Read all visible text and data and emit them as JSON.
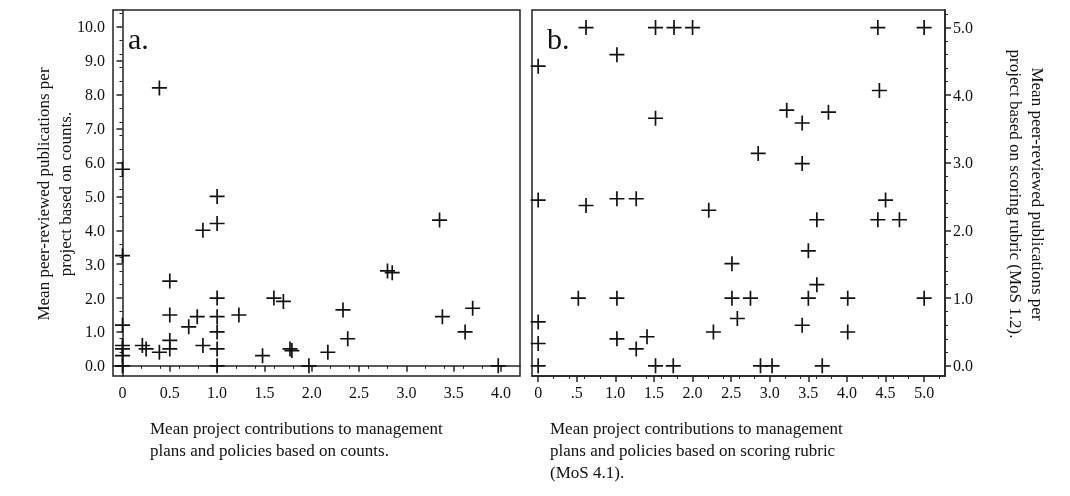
{
  "chart_data": [
    {
      "type": "scatter",
      "title": "a.",
      "xlabel": "Mean project contributions to management plans and policies based on counts.",
      "ylabel": "Mean peer-reviewed publications per project based on counts.",
      "marker": "cross",
      "tick_labels": "xy",
      "xlim": [
        -0.1,
        4.2
      ],
      "xticks": [
        {
          "value": 0,
          "label": "0"
        },
        {
          "value": 0.5,
          "label": "0.5"
        },
        {
          "value": 1,
          "label": "1.0"
        },
        {
          "value": 1.5,
          "label": "1.5"
        },
        {
          "value": 2,
          "label": "2.0"
        },
        {
          "value": 2.5,
          "label": "2.5"
        },
        {
          "value": 3,
          "label": "3.0"
        },
        {
          "value": 3.5,
          "label": "3.5"
        },
        {
          "value": 4,
          "label": "4.0"
        }
      ],
      "ylim": [
        -0.3,
        10.5
      ],
      "yticks": [
        {
          "value": 0,
          "label": "0.0"
        },
        {
          "value": 1,
          "label": "1.0"
        },
        {
          "value": 2,
          "label": "2.0"
        },
        {
          "value": 3,
          "label": "3.0"
        },
        {
          "value": 4,
          "label": "4.0"
        },
        {
          "value": 5,
          "label": "5.0"
        },
        {
          "value": 6,
          "label": "6.0"
        },
        {
          "value": 7,
          "label": "7.0"
        },
        {
          "value": 8,
          "label": "8.0"
        },
        {
          "value": 9,
          "label": "9.0"
        },
        {
          "value": 10,
          "label": "10.0"
        }
      ],
      "series": [
        {
          "color": "#111111",
          "x": [
            0.39,
            0,
            1.0,
            1.0,
            0.85,
            0,
            0.5,
            1.0,
            1.6,
            1.7,
            3.35,
            2.8,
            2.85,
            2.33,
            3.7,
            3.38,
            3.62,
            2.38,
            2.17,
            1.77,
            1.79,
            1.48,
            1.97,
            3.97,
            1.23,
            1.0,
            1.0,
            1.0,
            1.0,
            0.85,
            0.79,
            0.7,
            0.5,
            0.5,
            0.5,
            0.39,
            0.21,
            0.25,
            0,
            0,
            0,
            0,
            0
          ],
          "values": [
            8.2,
            5.8,
            5.0,
            4.2,
            4.0,
            3.25,
            2.5,
            2.0,
            2.0,
            1.9,
            4.3,
            2.8,
            2.75,
            1.65,
            1.7,
            1.45,
            1.0,
            0.8,
            0.4,
            0.5,
            0.45,
            0.3,
            0.0,
            0.0,
            1.5,
            1.45,
            1.0,
            0.5,
            0.0,
            0.6,
            1.45,
            1.15,
            1.5,
            0.75,
            0.5,
            0.4,
            0.6,
            0.5,
            1.2,
            0.6,
            0.5,
            0.3,
            0.0
          ]
        }
      ]
    },
    {
      "type": "scatter",
      "title": "b.",
      "xlabel": "Mean project contributions to management plans and policies based on scoring rubric (MoS 4.1).",
      "y2label": "Mean peer-reviewed publications per project based on scoring rubric (MoS 1.2).",
      "marker": "cross",
      "tick_labels": "xy",
      "xlim": [
        -0.08,
        5.27
      ],
      "xticks": [
        {
          "value": 0,
          "label": "0"
        },
        {
          "value": 0.5,
          "label": ".5"
        },
        {
          "value": 1,
          "label": "1.0"
        },
        {
          "value": 1.5,
          "label": "1.5"
        },
        {
          "value": 2,
          "label": "2.0"
        },
        {
          "value": 2.5,
          "label": "2.5"
        },
        {
          "value": 3,
          "label": "3.0"
        },
        {
          "value": 3.5,
          "label": "3.5"
        },
        {
          "value": 4,
          "label": "4.0"
        },
        {
          "value": 4.5,
          "label": "4.5"
        },
        {
          "value": 5,
          "label": "5.0"
        }
      ],
      "y2lim": [
        -0.15,
        5.26
      ],
      "y2ticks": [
        {
          "value": 0,
          "label": "0.0"
        },
        {
          "value": 1,
          "label": "1.0"
        },
        {
          "value": 2,
          "label": "2.0"
        },
        {
          "value": 3,
          "label": "3.0"
        },
        {
          "value": 4,
          "label": "4.0"
        },
        {
          "value": 5,
          "label": "5.0"
        }
      ],
      "series": [
        {
          "color": "#111111",
          "axis": "y2",
          "x": [
            0.62,
            1.52,
            1.76,
            2.0,
            4.4,
            5.0,
            0,
            1.02,
            4.42,
            1.52,
            3.22,
            3.42,
            3.76,
            2.85,
            3.42,
            0,
            0.62,
            1.02,
            1.27,
            2.21,
            4.5,
            4.4,
            4.68,
            3.61,
            3.5,
            2.51,
            3.61,
            0.52,
            1.02,
            2.51,
            2.75,
            3.5,
            4.01,
            5.0,
            2.58,
            3.42,
            2.27,
            4.01,
            0,
            0,
            0,
            1.02,
            1.27,
            1.41,
            1.52,
            1.75,
            2.88,
            3.03,
            3.68
          ],
          "values": [
            5.0,
            5.0,
            5.0,
            5.0,
            5.0,
            5.0,
            4.43,
            4.6,
            4.07,
            3.66,
            3.78,
            3.59,
            3.75,
            3.14,
            2.99,
            2.45,
            2.37,
            2.47,
            2.47,
            2.3,
            2.45,
            2.16,
            2.16,
            2.16,
            1.7,
            1.51,
            1.2,
            1.0,
            1.0,
            1.0,
            1.0,
            1.0,
            1.0,
            1.0,
            0.7,
            0.6,
            0.5,
            0.5,
            0.65,
            0.33,
            0.0,
            0.4,
            0.25,
            0.43,
            0.0,
            0.0,
            0.0,
            0.0,
            0.0
          ]
        }
      ]
    }
  ]
}
